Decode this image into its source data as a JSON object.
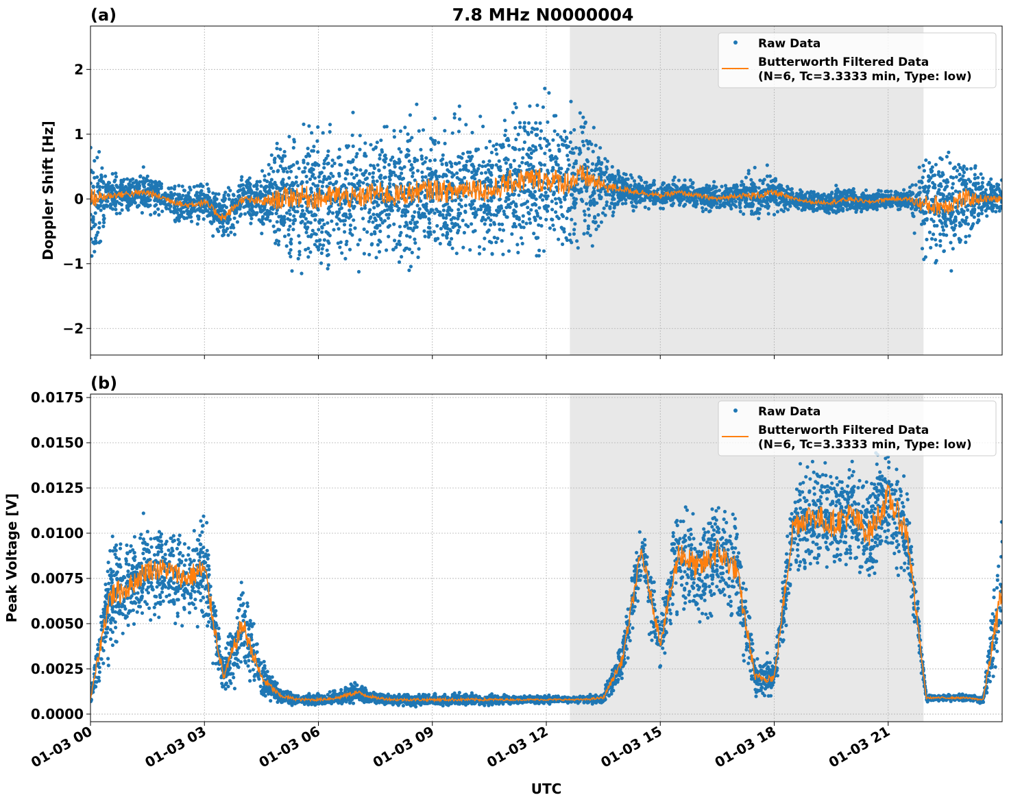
{
  "title": "7.8 MHz N0000004",
  "xlabel": "UTC",
  "x_tick_labels": [
    "01-03 00",
    "01-03 03",
    "01-03 06",
    "01-03 09",
    "01-03 12",
    "01-03 15",
    "01-03 18",
    "01-03 21"
  ],
  "colors": {
    "raw": "#1f77b4",
    "filtered": "#ff7f0e",
    "shade": "#e8e8e8"
  },
  "chart_data": [
    {
      "type": "scatter",
      "panel_label": "(a)",
      "ylabel": "Doppler Shift [Hz]",
      "xlim_hours": [
        0,
        24
      ],
      "ylim": [
        -2.41,
        2.67
      ],
      "y_ticks": [
        -2,
        -1,
        0,
        1,
        2
      ],
      "y_tick_labels": [
        "−2",
        "−1",
        "0",
        "1",
        "2"
      ],
      "grid": true,
      "shaded_region_hours": [
        12.62,
        21.93
      ],
      "legend": {
        "placement": "top-right",
        "entries": [
          "Raw Data",
          "Butterworth Filtered Data",
          "(N=6, Tc=3.3333 min, Type: low)"
        ]
      },
      "time_hours": [
        0,
        0.5,
        1,
        1.5,
        2,
        2.5,
        3,
        3.5,
        4,
        4.5,
        5,
        5.5,
        6,
        6.5,
        7,
        7.5,
        8,
        8.5,
        9,
        9.5,
        10,
        10.5,
        11,
        11.5,
        12,
        12.5,
        13,
        13.5,
        14,
        14.5,
        15,
        15.5,
        16,
        16.5,
        17,
        17.5,
        18,
        18.5,
        19,
        19.5,
        20,
        20.5,
        21,
        21.5,
        22,
        22.5,
        23,
        23.5,
        24
      ],
      "filtered": [
        0.0,
        0.05,
        0.08,
        0.1,
        0.0,
        -0.1,
        -0.05,
        -0.3,
        0.0,
        -0.05,
        0.0,
        0.05,
        0.0,
        0.05,
        0.0,
        0.1,
        0.05,
        0.1,
        0.15,
        0.1,
        0.2,
        0.1,
        0.25,
        0.3,
        0.3,
        0.25,
        0.35,
        0.2,
        0.15,
        0.1,
        0.05,
        0.1,
        0.05,
        0.0,
        0.05,
        0.05,
        0.1,
        0.0,
        -0.05,
        -0.05,
        0.0,
        -0.05,
        0.0,
        0.0,
        -0.1,
        -0.1,
        0.0,
        0.0,
        0.0
      ],
      "raw_spread": [
        1.0,
        0.3,
        0.3,
        0.3,
        0.25,
        0.3,
        0.3,
        0.4,
        0.3,
        0.4,
        1.0,
        1.0,
        1.0,
        1.0,
        1.0,
        1.0,
        1.0,
        1.0,
        1.0,
        1.0,
        1.0,
        1.0,
        1.05,
        1.1,
        1.1,
        1.1,
        1.1,
        0.6,
        0.25,
        0.25,
        0.2,
        0.2,
        0.2,
        0.2,
        0.2,
        0.35,
        0.3,
        0.15,
        0.15,
        0.2,
        0.2,
        0.15,
        0.15,
        0.15,
        0.9,
        0.9,
        0.9,
        0.3,
        0.3
      ]
    },
    {
      "type": "scatter",
      "panel_label": "(b)",
      "ylabel": "Peak Voltage [V]",
      "xlim_hours": [
        0,
        24
      ],
      "ylim": [
        -0.00042,
        0.01769
      ],
      "y_ticks": [
        0,
        0.0025,
        0.005,
        0.0075,
        0.01,
        0.0125,
        0.015,
        0.0175
      ],
      "y_tick_labels": [
        "0.0000",
        "0.0025",
        "0.0050",
        "0.0075",
        "0.0100",
        "0.0125",
        "0.0150",
        "0.0175"
      ],
      "grid": true,
      "shaded_region_hours": [
        12.62,
        21.93
      ],
      "legend": {
        "placement": "top-right",
        "entries": [
          "Raw Data",
          "Butterworth Filtered Data",
          "(N=6, Tc=3.3333 min, Type: low)"
        ]
      },
      "time_hours": [
        0,
        0.5,
        1,
        1.5,
        2,
        2.5,
        3,
        3.5,
        4,
        4.5,
        5,
        5.5,
        6,
        6.5,
        7,
        7.5,
        8,
        8.5,
        9,
        9.5,
        10,
        10.5,
        11,
        11.5,
        12,
        12.5,
        13,
        13.5,
        14,
        14.5,
        15,
        15.5,
        16,
        16.5,
        17,
        17.5,
        18,
        18.5,
        19,
        19.5,
        20,
        20.5,
        21,
        21.5,
        22,
        22.5,
        23,
        23.5,
        24
      ],
      "filtered": [
        0.0008,
        0.0065,
        0.007,
        0.008,
        0.008,
        0.0075,
        0.008,
        0.002,
        0.005,
        0.002,
        0.001,
        0.0008,
        0.0008,
        0.0009,
        0.0012,
        0.0009,
        0.0008,
        0.0008,
        0.0008,
        0.0008,
        0.0008,
        0.0008,
        0.0008,
        0.0008,
        0.0008,
        0.0008,
        0.0008,
        0.0009,
        0.003,
        0.009,
        0.004,
        0.009,
        0.008,
        0.009,
        0.008,
        0.002,
        0.002,
        0.0105,
        0.011,
        0.0105,
        0.011,
        0.01,
        0.012,
        0.01,
        0.0009,
        0.0009,
        0.0009,
        0.0008,
        0.007
      ],
      "raw_spread": [
        0.0003,
        0.003,
        0.0025,
        0.0025,
        0.0025,
        0.0025,
        0.003,
        0.001,
        0.0025,
        0.0012,
        0.0004,
        0.0003,
        0.0003,
        0.0004,
        0.0006,
        0.0003,
        0.0003,
        0.0003,
        0.0003,
        0.0003,
        0.0003,
        0.0003,
        0.0002,
        0.0002,
        0.0002,
        0.0002,
        0.0002,
        0.0003,
        0.0012,
        0.002,
        0.0015,
        0.003,
        0.003,
        0.003,
        0.003,
        0.001,
        0.001,
        0.003,
        0.003,
        0.003,
        0.003,
        0.003,
        0.003,
        0.003,
        0.0002,
        0.0002,
        0.0002,
        0.0002,
        0.004
      ]
    }
  ]
}
